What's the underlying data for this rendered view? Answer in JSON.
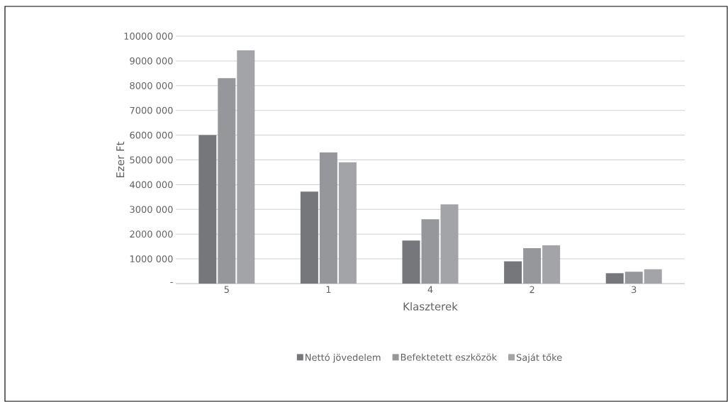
{
  "chart_data": {
    "type": "bar",
    "xlabel": "Klaszterek",
    "ylabel": "Ezer Ft",
    "categories": [
      "5",
      "1",
      "4",
      "2",
      "3"
    ],
    "series": [
      {
        "name": "Nettó jövedelem",
        "color": "#76777b",
        "values": [
          6000000,
          3720000,
          1740000,
          900000,
          420000
        ]
      },
      {
        "name": "Befektetett eszközök",
        "color": "#96979b",
        "values": [
          8300000,
          5300000,
          2600000,
          1430000,
          480000
        ]
      },
      {
        "name": "Saját tőke",
        "color": "#a3a4a8",
        "values": [
          9430000,
          4900000,
          3200000,
          1550000,
          580000
        ]
      }
    ],
    "ylim": [
      0,
      10000000
    ],
    "yticks": [
      {
        "value": 0,
        "label": "-"
      },
      {
        "value": 1000000,
        "label": "1000 000"
      },
      {
        "value": 2000000,
        "label": "2000 000"
      },
      {
        "value": 3000000,
        "label": "3000 000"
      },
      {
        "value": 4000000,
        "label": "4000 000"
      },
      {
        "value": 5000000,
        "label": "5000 000"
      },
      {
        "value": 6000000,
        "label": "6000 000"
      },
      {
        "value": 7000000,
        "label": "7000 000"
      },
      {
        "value": 8000000,
        "label": "8000 000"
      },
      {
        "value": 9000000,
        "label": "9000 000"
      },
      {
        "value": 10000000,
        "label": "10000 000"
      }
    ],
    "grid": "y",
    "legend": "bottom"
  }
}
